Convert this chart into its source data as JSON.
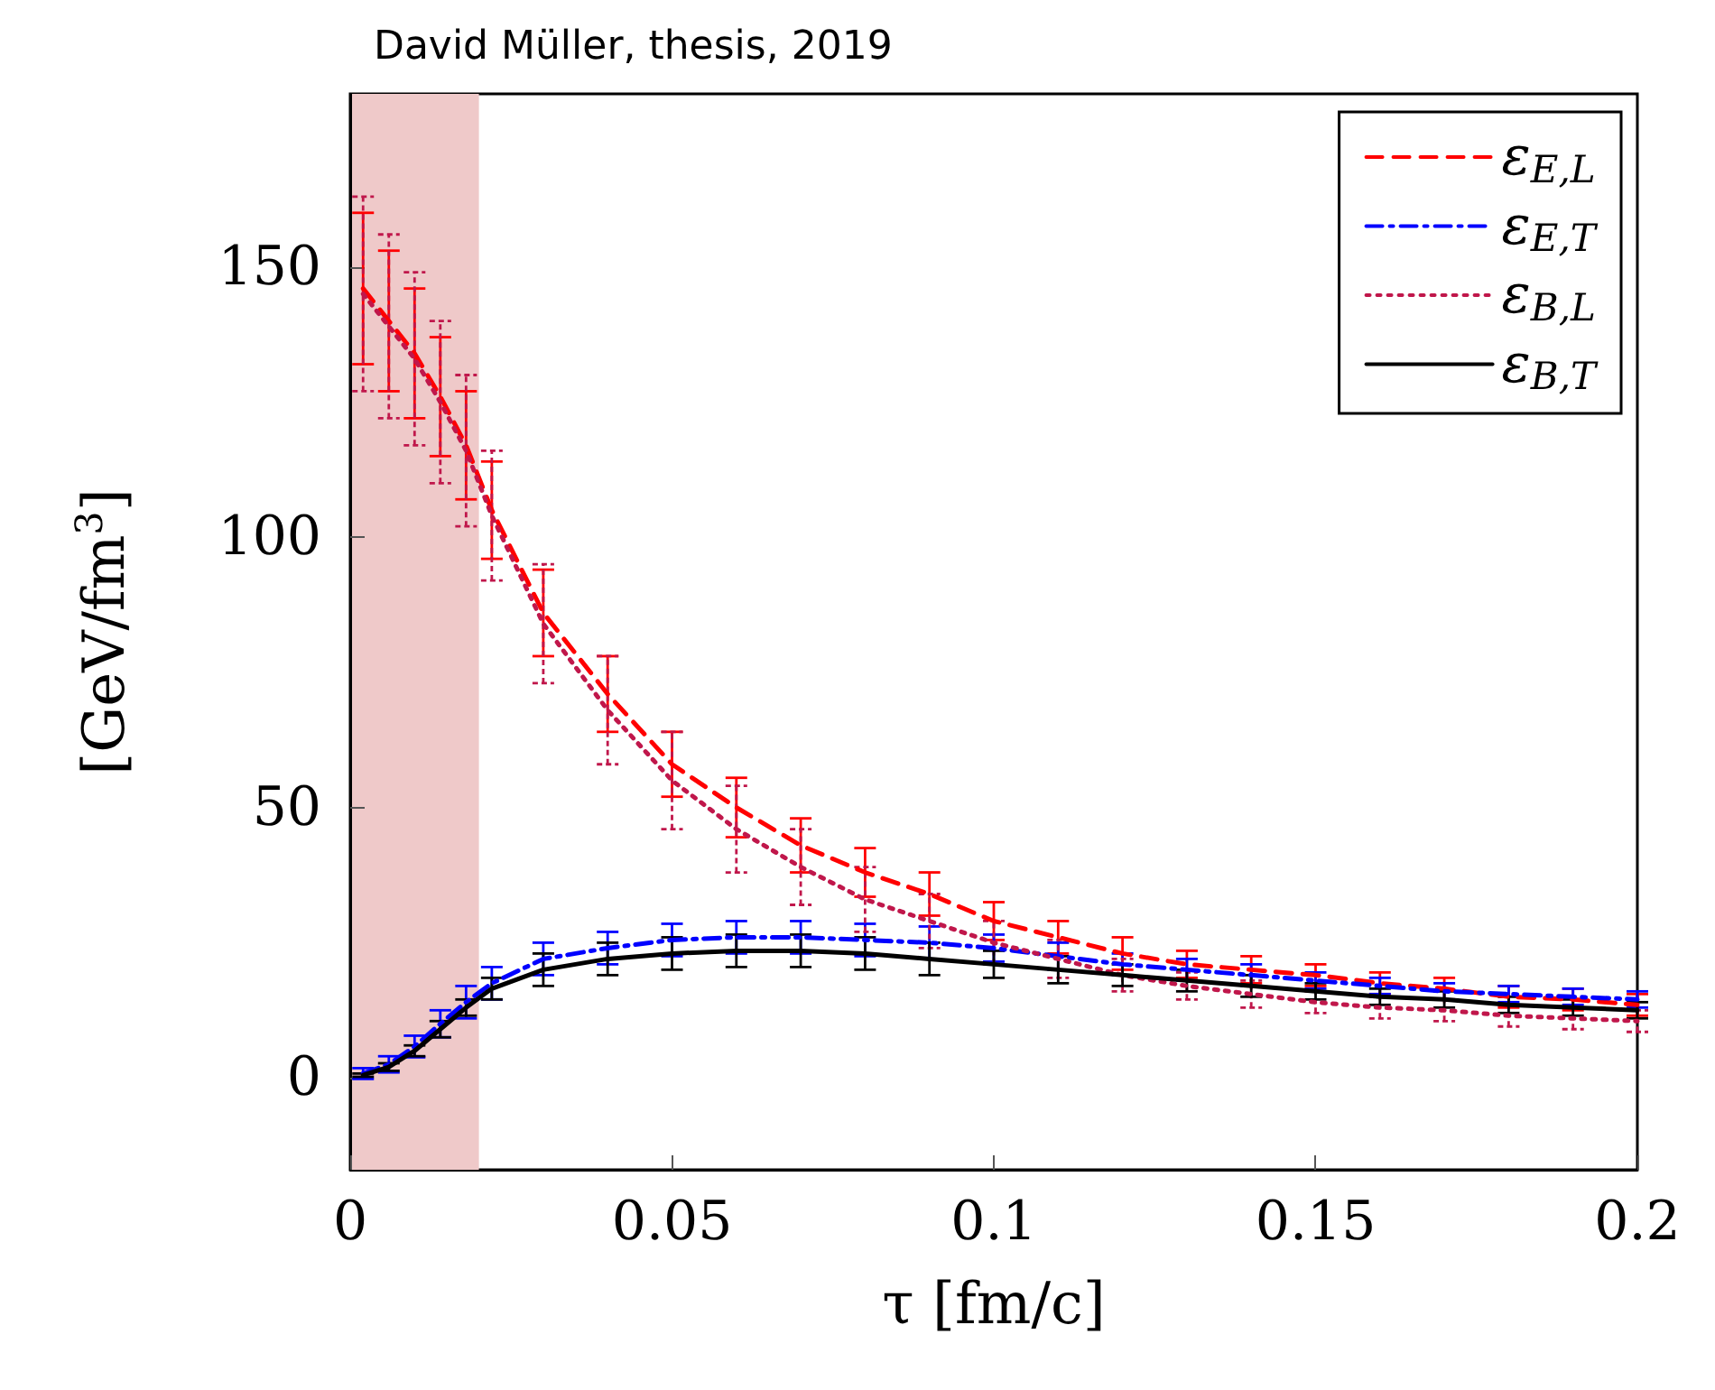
{
  "chart_data": {
    "type": "line",
    "title": "David Müller, thesis, 2019",
    "xlabel": "τ [fm/c]",
    "ylabel": "[GeV/fm$^{3}$]",
    "x": [
      0.002,
      0.006,
      0.01,
      0.014,
      0.018,
      0.022,
      0.03,
      0.04,
      0.05,
      0.06,
      0.07,
      0.08,
      0.09,
      0.1,
      0.11,
      0.12,
      0.13,
      0.14,
      0.15,
      0.16,
      0.17,
      0.18,
      0.19,
      0.2
    ],
    "series": [
      {
        "name": "ε$_{E,L}$",
        "color": "#ff0000",
        "line_style": "dashed",
        "values": [
          146,
          140,
          134,
          126,
          117,
          105,
          86,
          71,
          58,
          50,
          43,
          38,
          34,
          29,
          26,
          23,
          21,
          20,
          19,
          17.5,
          16.5,
          15,
          14.5,
          13.5
        ],
        "errors": [
          14,
          13,
          12,
          11,
          10,
          9,
          8,
          7,
          6,
          5.5,
          5,
          4.5,
          4,
          3.5,
          3,
          3,
          2.5,
          2.5,
          2,
          2,
          2,
          2,
          2,
          2
        ]
      },
      {
        "name": "ε$_{E,T}$",
        "color": "#0000ff",
        "line_style": "dashdot",
        "values": [
          0.8,
          2.5,
          5.8,
          10,
          14,
          17.5,
          22,
          24,
          25.5,
          26,
          26,
          25.5,
          25,
          24,
          22.5,
          21,
          20,
          19,
          18,
          17,
          16,
          15.5,
          15,
          14.5
        ],
        "errors": [
          1,
          1.5,
          2,
          2.5,
          3,
          3,
          3,
          3,
          3,
          3,
          3,
          3,
          3,
          2.5,
          2.5,
          2,
          2,
          2,
          1.5,
          1.5,
          1.5,
          1.5,
          1.5,
          1.5
        ]
      },
      {
        "name": "ε$_{B,L}$",
        "color": "#c0174b",
        "line_style": "dotted",
        "values": [
          145,
          139,
          133,
          125,
          116,
          104,
          84,
          68,
          55,
          46,
          39,
          33,
          29,
          25,
          22,
          19,
          17,
          15.5,
          14,
          13,
          12.5,
          11.5,
          11,
          10.5
        ],
        "errors": [
          18,
          17,
          16,
          15,
          14,
          12,
          11,
          10,
          9,
          8,
          7,
          6,
          5,
          4,
          3.5,
          3,
          2.5,
          2.5,
          2,
          2,
          2,
          2,
          2,
          2
        ]
      },
      {
        "name": "ε$_{B,T}$",
        "color": "#000000",
        "line_style": "solid",
        "values": [
          0.5,
          2,
          5,
          9,
          13,
          16.5,
          20,
          22,
          23,
          23.5,
          23.5,
          23,
          22,
          21,
          20,
          19,
          18,
          17,
          16,
          15,
          14.5,
          13.5,
          13,
          12.5
        ],
        "errors": [
          0.3,
          0.7,
          1,
          1.5,
          1.5,
          2,
          3,
          3,
          3,
          3,
          3,
          3,
          3,
          2.5,
          2.5,
          2,
          2,
          2,
          1.5,
          1.5,
          1.5,
          1.5,
          1.5,
          1.5
        ]
      }
    ],
    "xlim": [
      0,
      0.2
    ],
    "xticks": [
      0,
      0.05,
      0.1,
      0.15,
      0.2
    ],
    "ylim": [
      -17,
      182
    ],
    "yticks": [
      0,
      50,
      100,
      150
    ],
    "bands": [
      {
        "axis": "x",
        "from": 0,
        "to": 0.02,
        "color": "#efc9c9"
      }
    ],
    "grid": false,
    "legend": "top right",
    "marker": "none"
  }
}
